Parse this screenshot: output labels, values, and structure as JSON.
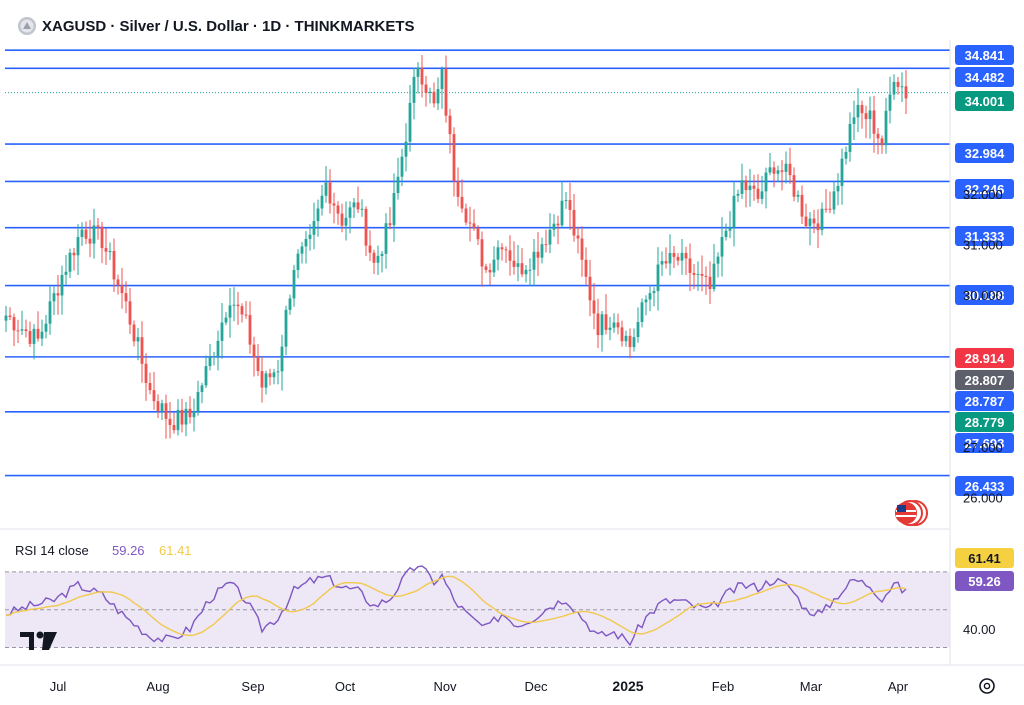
{
  "header": {
    "title": "XAGUSD · Silver / U.S. Dollar · 1D · THINKMARKETS",
    "logo_icon": "silver-coin-icon"
  },
  "colors": {
    "up": "#26a69a",
    "down": "#ef5350",
    "level_line": "#2962ff",
    "rsi_line": "#7e57c2",
    "rsi_ma": "#f2c94c",
    "rsi_band": "#ede7f6",
    "tag_blue": "#2962ff",
    "tag_red": "#f23645",
    "tag_grey": "#5d606b",
    "tag_green": "#089981",
    "tag_yellow": "#f5d142"
  },
  "chart_data": {
    "type": "candlestick",
    "symbol": "XAGUSD",
    "price_axis": {
      "ticks": [
        "34.841",
        "34.482",
        "34.001",
        "32.984",
        "32.246",
        "32.000",
        "31.333",
        "31.000",
        "30.188",
        "30.000",
        "28.914",
        "28.807",
        "28.787",
        "28.779",
        "27.693",
        "27.000",
        "26.433",
        "26.000"
      ],
      "range": [
        25.5,
        35.0
      ]
    },
    "horizontal_levels": [
      34.841,
      34.482,
      32.984,
      32.246,
      31.333,
      30.188,
      28.779,
      27.693,
      26.433
    ],
    "last_price": 34.001,
    "price_tags": [
      {
        "label": "34.841",
        "value": 34.841,
        "color": "#2962ff"
      },
      {
        "label": "34.482",
        "value": 34.482,
        "color": "#2962ff"
      },
      {
        "label": "34.001",
        "value": 34.001,
        "color": "#089981"
      },
      {
        "label": "32.984",
        "value": 32.984,
        "color": "#2962ff"
      },
      {
        "label": "32.246",
        "value": 32.246,
        "color": "#2962ff"
      },
      {
        "label": "31.333",
        "value": 31.333,
        "color": "#2962ff"
      },
      {
        "label": "30.188",
        "value": 30.188,
        "color": "#2962ff"
      },
      {
        "label": "28.914",
        "value": 28.914,
        "color": "#f23645"
      },
      {
        "label": "28.807",
        "value": 28.807,
        "color": "#5d606b"
      },
      {
        "label": "28.787",
        "value": 28.787,
        "color": "#2962ff"
      },
      {
        "label": "28.779",
        "value": 28.779,
        "color": "#089981"
      },
      {
        "label": "27.693",
        "value": 27.693,
        "color": "#2962ff"
      },
      {
        "label": "26.433",
        "value": 26.433,
        "color": "#2962ff"
      }
    ],
    "axis_labels": [
      {
        "label": "32.000",
        "value": 32.0
      },
      {
        "label": "31.000",
        "value": 31.0
      },
      {
        "label": "30.000",
        "value": 30.0
      },
      {
        "label": "27.000",
        "value": 27.0
      },
      {
        "label": "26.000",
        "value": 26.0
      }
    ],
    "time_axis": [
      "Jul",
      "Aug",
      "Sep",
      "Oct",
      "Nov",
      "Dec",
      "2025",
      "Feb",
      "Mar",
      "Apr"
    ],
    "time_axis_bold": "2025",
    "path_anchors": [
      {
        "t": 0,
        "p": 29.6
      },
      {
        "t": 8,
        "p": 29.1
      },
      {
        "t": 14,
        "p": 30.4
      },
      {
        "t": 19,
        "p": 31.3
      },
      {
        "t": 24,
        "p": 31.1
      },
      {
        "t": 30,
        "p": 29.8
      },
      {
        "t": 36,
        "p": 28.1
      },
      {
        "t": 41,
        "p": 27.5
      },
      {
        "t": 46,
        "p": 27.6
      },
      {
        "t": 51,
        "p": 28.7
      },
      {
        "t": 56,
        "p": 30.0
      },
      {
        "t": 60,
        "p": 29.4
      },
      {
        "t": 64,
        "p": 28.2
      },
      {
        "t": 68,
        "p": 28.6
      },
      {
        "t": 72,
        "p": 30.6
      },
      {
        "t": 76,
        "p": 31.0
      },
      {
        "t": 80,
        "p": 32.2
      },
      {
        "t": 84,
        "p": 31.5
      },
      {
        "t": 88,
        "p": 31.8
      },
      {
        "t": 92,
        "p": 30.6
      },
      {
        "t": 96,
        "p": 31.4
      },
      {
        "t": 100,
        "p": 33.2
      },
      {
        "t": 103,
        "p": 34.6
      },
      {
        "t": 107,
        "p": 33.7
      },
      {
        "t": 109,
        "p": 34.3
      },
      {
        "t": 112,
        "p": 32.4
      },
      {
        "t": 116,
        "p": 31.4
      },
      {
        "t": 120,
        "p": 30.5
      },
      {
        "t": 124,
        "p": 31.1
      },
      {
        "t": 128,
        "p": 30.5
      },
      {
        "t": 132,
        "p": 30.8
      },
      {
        "t": 136,
        "p": 31.3
      },
      {
        "t": 140,
        "p": 31.9
      },
      {
        "t": 144,
        "p": 30.6
      },
      {
        "t": 148,
        "p": 29.4
      },
      {
        "t": 152,
        "p": 29.6
      },
      {
        "t": 156,
        "p": 29.0
      },
      {
        "t": 160,
        "p": 29.9
      },
      {
        "t": 164,
        "p": 30.6
      },
      {
        "t": 168,
        "p": 30.7
      },
      {
        "t": 172,
        "p": 30.4
      },
      {
        "t": 176,
        "p": 30.1
      },
      {
        "t": 180,
        "p": 31.3
      },
      {
        "t": 184,
        "p": 32.2
      },
      {
        "t": 188,
        "p": 31.9
      },
      {
        "t": 192,
        "p": 32.6
      },
      {
        "t": 196,
        "p": 32.3
      },
      {
        "t": 200,
        "p": 31.5
      },
      {
        "t": 204,
        "p": 31.5
      },
      {
        "t": 208,
        "p": 32.3
      },
      {
        "t": 212,
        "p": 33.6
      },
      {
        "t": 216,
        "p": 33.5
      },
      {
        "t": 219,
        "p": 33.0
      },
      {
        "t": 222,
        "p": 34.4
      },
      {
        "t": 225,
        "p": 34.0
      }
    ],
    "rsi": {
      "title": "RSI 14 close",
      "value": 59.26,
      "ma_value": 61.41,
      "value_label": "59.26",
      "ma_label": "61.41",
      "axis_label": "40.00",
      "band": [
        30,
        70
      ],
      "range": [
        25,
        80
      ],
      "anchors": [
        {
          "t": 0,
          "v": 48
        },
        {
          "t": 6,
          "v": 52
        },
        {
          "t": 12,
          "v": 55
        },
        {
          "t": 18,
          "v": 63
        },
        {
          "t": 24,
          "v": 58
        },
        {
          "t": 30,
          "v": 46
        },
        {
          "t": 36,
          "v": 36
        },
        {
          "t": 41,
          "v": 34
        },
        {
          "t": 46,
          "v": 40
        },
        {
          "t": 51,
          "v": 56
        },
        {
          "t": 56,
          "v": 64
        },
        {
          "t": 60,
          "v": 55
        },
        {
          "t": 64,
          "v": 40
        },
        {
          "t": 68,
          "v": 46
        },
        {
          "t": 72,
          "v": 60
        },
        {
          "t": 76,
          "v": 65
        },
        {
          "t": 80,
          "v": 67
        },
        {
          "t": 84,
          "v": 62
        },
        {
          "t": 88,
          "v": 60
        },
        {
          "t": 92,
          "v": 52
        },
        {
          "t": 96,
          "v": 56
        },
        {
          "t": 100,
          "v": 68
        },
        {
          "t": 103,
          "v": 74
        },
        {
          "t": 107,
          "v": 65
        },
        {
          "t": 109,
          "v": 68
        },
        {
          "t": 112,
          "v": 55
        },
        {
          "t": 116,
          "v": 46
        },
        {
          "t": 120,
          "v": 40
        },
        {
          "t": 124,
          "v": 48
        },
        {
          "t": 128,
          "v": 42
        },
        {
          "t": 132,
          "v": 46
        },
        {
          "t": 136,
          "v": 52
        },
        {
          "t": 140,
          "v": 56
        },
        {
          "t": 144,
          "v": 46
        },
        {
          "t": 148,
          "v": 36
        },
        {
          "t": 152,
          "v": 38
        },
        {
          "t": 156,
          "v": 33
        },
        {
          "t": 160,
          "v": 46
        },
        {
          "t": 164,
          "v": 54
        },
        {
          "t": 168,
          "v": 55
        },
        {
          "t": 172,
          "v": 52
        },
        {
          "t": 176,
          "v": 50
        },
        {
          "t": 180,
          "v": 58
        },
        {
          "t": 184,
          "v": 63
        },
        {
          "t": 188,
          "v": 62
        },
        {
          "t": 192,
          "v": 66
        },
        {
          "t": 196,
          "v": 62
        },
        {
          "t": 200,
          "v": 50
        },
        {
          "t": 204,
          "v": 48
        },
        {
          "t": 208,
          "v": 58
        },
        {
          "t": 212,
          "v": 66
        },
        {
          "t": 216,
          "v": 63
        },
        {
          "t": 219,
          "v": 56
        },
        {
          "t": 222,
          "v": 64
        },
        {
          "t": 225,
          "v": 59
        }
      ]
    }
  },
  "watermark": "TV",
  "settings_icon": "gear-icon",
  "flag_icon": "us-flag-icon"
}
